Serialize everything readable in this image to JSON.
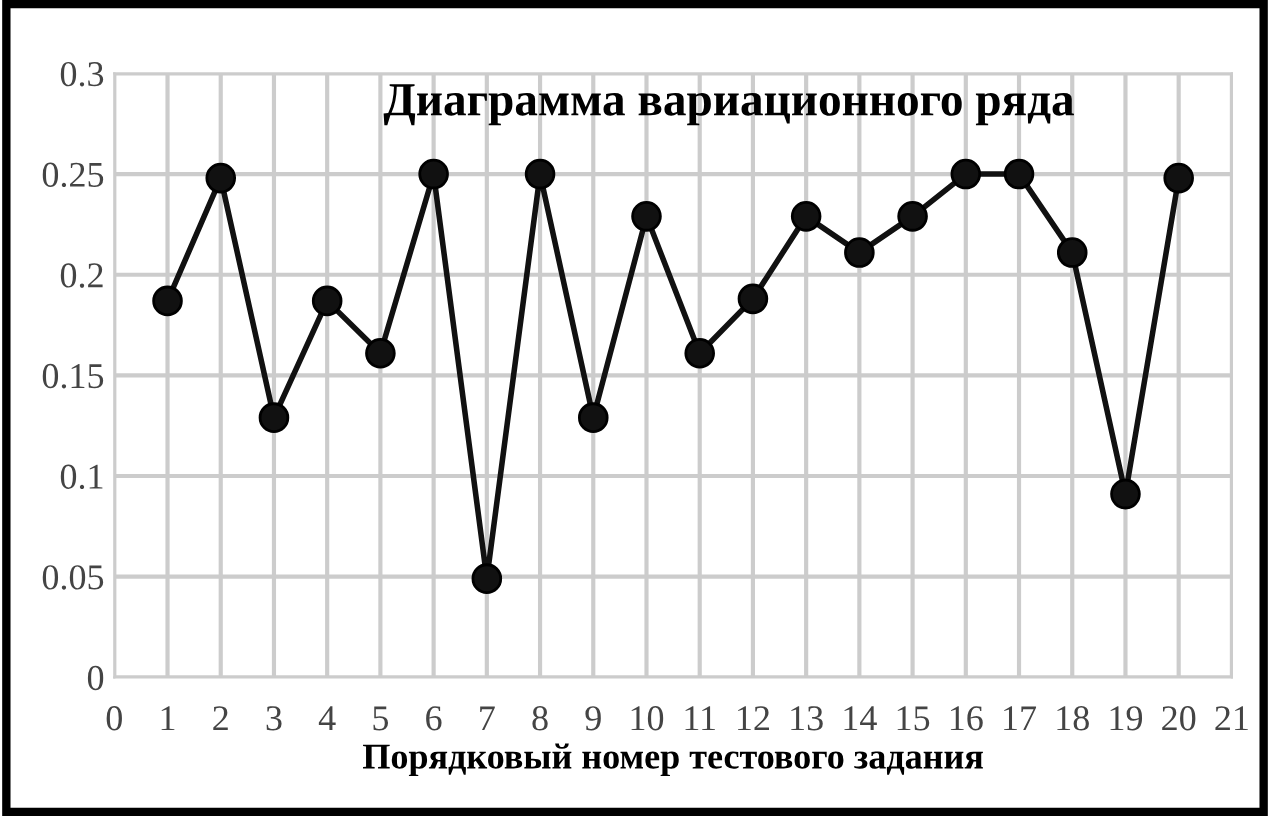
{
  "chart_data": {
    "type": "line",
    "title": "Диаграмма вариационного ряда",
    "xlabel": "Порядковый номер тестового задания",
    "x": [
      1,
      2,
      3,
      4,
      5,
      6,
      7,
      8,
      9,
      10,
      11,
      12,
      13,
      14,
      15,
      16,
      17,
      18,
      19,
      20
    ],
    "series": [
      {
        "color": "#111111",
        "values": [
          0.187,
          0.248,
          0.129,
          0.187,
          0.161,
          0.25,
          0.049,
          0.25,
          0.129,
          0.229,
          0.161,
          0.188,
          0.229,
          0.211,
          0.229,
          0.25,
          0.25,
          0.211,
          0.091,
          0.248
        ]
      }
    ],
    "xlim": [
      0,
      21
    ],
    "xticks": [
      0,
      1,
      2,
      3,
      4,
      5,
      6,
      7,
      8,
      9,
      10,
      11,
      12,
      13,
      14,
      15,
      16,
      17,
      18,
      19,
      20,
      21
    ],
    "ylim": [
      0,
      0.3
    ],
    "yticks": [
      0,
      0.05,
      0.1,
      0.15,
      0.2,
      0.25,
      0.3
    ],
    "grid": true,
    "marker": "circle",
    "line_style": "solid"
  }
}
